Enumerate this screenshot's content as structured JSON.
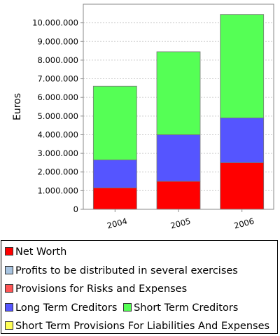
{
  "chart_data": {
    "type": "bar",
    "stacked": true,
    "categories": [
      "2004",
      "2005",
      "2006"
    ],
    "ylabel": "Euros",
    "xlabel": "",
    "ylim": [
      0,
      11000000
    ],
    "yticks": [
      0,
      1000000,
      2000000,
      3000000,
      4000000,
      5000000,
      6000000,
      7000000,
      8000000,
      9000000,
      10000000
    ],
    "ytick_labels": [
      "0",
      "1.000.000",
      "2.000.000",
      "3.000.000",
      "4.000.000",
      "5.000.000",
      "6.000.000",
      "7.000.000",
      "8.000.000",
      "9.000.000",
      "10.000.000"
    ],
    "grid": true,
    "legend_position": "bottom",
    "series": [
      {
        "name": "Net Worth",
        "color": "#ff0000",
        "values": [
          1150000,
          1500000,
          2500000
        ]
      },
      {
        "name": "Profits to be distributed in several exercises",
        "color": "#a8c4e0",
        "values": [
          0,
          0,
          0
        ]
      },
      {
        "name": "Provisions for Risks and Expenses",
        "color": "#ff5555",
        "values": [
          0,
          0,
          0
        ]
      },
      {
        "name": "Long Term Creditors",
        "color": "#5555ff",
        "values": [
          1500000,
          2500000,
          2400000
        ]
      },
      {
        "name": "Short Term Creditors",
        "color": "#55ff55",
        "values": [
          3950000,
          4450000,
          5550000
        ]
      },
      {
        "name": "Short Term Provisions For Liabilities And Expenses",
        "color": "#ffff55",
        "values": [
          0,
          0,
          0
        ]
      }
    ]
  }
}
